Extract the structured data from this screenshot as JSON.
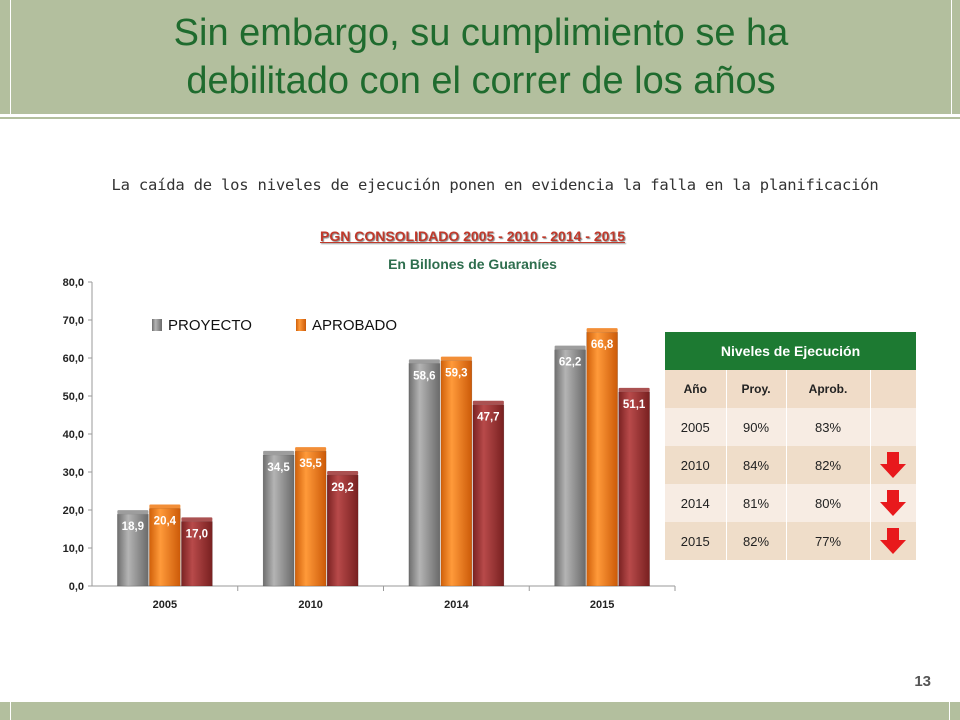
{
  "title": "Sin embargo, su cumplimiento se ha debilitado con el correr de los años",
  "subtitle": "La caída de los niveles de ejecución ponen en evidencia la falla en la planificación",
  "page_number": "13",
  "chart_data": {
    "type": "bar",
    "title": "PGN CONSOLIDADO 2005 - 2010 - 2014 - 2015",
    "subtitle": "En Billones de Guaraníes",
    "categories": [
      "2005",
      "2010",
      "2014",
      "2015"
    ],
    "series": [
      {
        "name": "PROYECTO",
        "values": [
          18.9,
          34.5,
          58.6,
          62.2
        ],
        "labels": [
          "18,9",
          "34,5",
          "58,6",
          "62,2"
        ],
        "color": "#8c8c8c"
      },
      {
        "name": "APROBADO",
        "values": [
          20.4,
          35.5,
          59.3,
          66.8
        ],
        "labels": [
          "20,4",
          "35,5",
          "59,3",
          "66,8"
        ],
        "color": "#f07a14"
      },
      {
        "name": "",
        "values": [
          17.0,
          29.2,
          47.7,
          51.1
        ],
        "labels": [
          "17,0",
          "29,2",
          "47,7",
          "51,1"
        ],
        "color": "#9b3232"
      }
    ],
    "yticks": [
      "0,0",
      "10,0",
      "20,0",
      "30,0",
      "40,0",
      "50,0",
      "60,0",
      "70,0",
      "80,0"
    ],
    "ylim": [
      0,
      80
    ],
    "grid": false,
    "legend_position": "top-left"
  },
  "table": {
    "title": "Niveles de Ejecución",
    "headers": [
      "Año",
      "Proy.",
      "Aprob.",
      ""
    ],
    "rows": [
      {
        "year": "2005",
        "proy": "90%",
        "aprob": "83%",
        "down": false
      },
      {
        "year": "2010",
        "proy": "84%",
        "aprob": "82%",
        "down": true
      },
      {
        "year": "2014",
        "proy": "81%",
        "aprob": "80%",
        "down": true
      },
      {
        "year": "2015",
        "proy": "82%",
        "aprob": "77%",
        "down": true
      }
    ],
    "arrow_icon": "down-arrow-icon",
    "arrow_color": "#e8191c"
  },
  "colors": {
    "header_bg": "#b3bf9e",
    "title": "#1f6b2e",
    "table_header": "#1d7a32"
  }
}
